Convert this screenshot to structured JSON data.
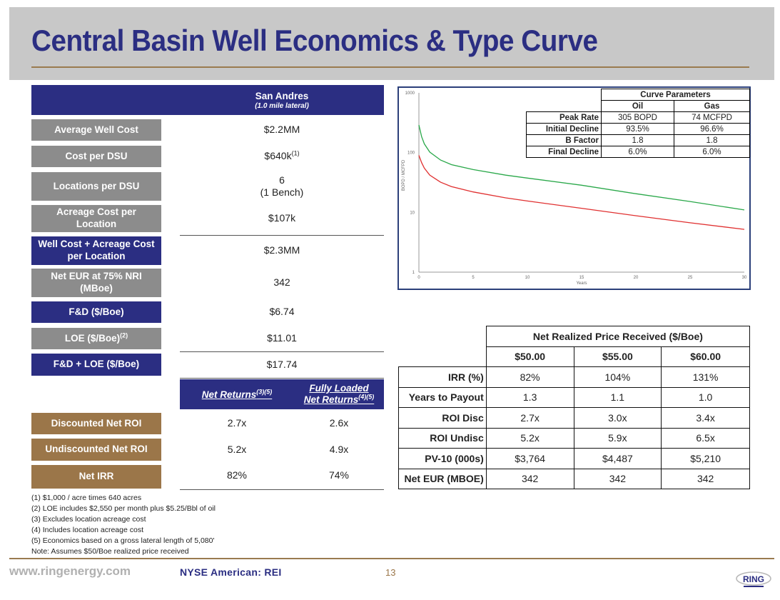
{
  "title": "Central Basin Well Economics & Type Curve",
  "left_table": {
    "header": "San Andres",
    "subheader": "(1.0 mile lateral)",
    "rows": [
      {
        "label": "Average Well Cost",
        "value": "$2.2MM"
      },
      {
        "label": "Cost per DSU",
        "value": "$640k",
        "sup": "(1)"
      },
      {
        "label": "Locations per DSU",
        "value": "6",
        "value2": "(1 Bench)"
      },
      {
        "label": "Acreage Cost per Location",
        "value": "$107k"
      },
      {
        "label": "Well Cost + Acreage Cost per Location",
        "value": "$2.3MM"
      },
      {
        "label": "Net EUR at 75% NRI (MBoe)",
        "value": "342"
      },
      {
        "label": "F&D ($/Boe)",
        "value": "$6.74"
      },
      {
        "label": "LOE ($/Boe)",
        "sup": "(2)",
        "value": "$11.01"
      },
      {
        "label": "F&D + LOE ($/Boe)",
        "value": "$17.74"
      }
    ],
    "returns_header": {
      "col1": "Net Returns",
      "col1_sup": "(3)(5)",
      "col2a": "Fully Loaded",
      "col2b": "Net Returns",
      "col2_sup": "(4)(5)"
    },
    "returns_rows": [
      {
        "label": "Discounted Net ROI",
        "net": "2.7x",
        "loaded": "2.6x"
      },
      {
        "label": "Undiscounted Net ROI",
        "net": "5.2x",
        "loaded": "4.9x"
      },
      {
        "label": "Net IRR",
        "net": "82%",
        "loaded": "74%"
      }
    ]
  },
  "footnotes": [
    "(1) $1,000 / acre times 640 acres",
    "(2) LOE includes $2,550 per month plus $5.25/Bbl of oil",
    "(3) Excludes location acreage cost",
    "(4) Includes location acreage cost",
    "(5) Economics based on a gross lateral length of 5,080'",
    "Note: Assumes $50/Boe realized price received"
  ],
  "curve_parameters": {
    "title": "Curve Parameters",
    "cols": [
      "Oil",
      "Gas"
    ],
    "rows": [
      {
        "label": "Peak Rate",
        "oil": "305 BOPD",
        "gas": "74 MCFPD"
      },
      {
        "label": "Initial Decline",
        "oil": "93.5%",
        "gas": "96.6%"
      },
      {
        "label": "B Factor",
        "oil": "1.8",
        "gas": "1.8"
      },
      {
        "label": "Final Decline",
        "oil": "6.0%",
        "gas": "6.0%"
      }
    ]
  },
  "chart_data": {
    "type": "line",
    "xlabel": "Years",
    "ylabel": "BOPD / MCFPD",
    "log_y": true,
    "ylim": [
      1,
      1000
    ],
    "xlim": [
      0,
      30
    ],
    "x_ticks": [
      "0",
      "5",
      "10",
      "15",
      "20",
      "25",
      "30"
    ],
    "y_ticks": [
      "1",
      "10",
      "100",
      "1000"
    ],
    "series": [
      {
        "color": "#e03030",
        "x": [
          0,
          0.25,
          0.5,
          1,
          2,
          3,
          5,
          8,
          10,
          15,
          20,
          25,
          30
        ],
        "y": [
          90,
          68,
          55,
          42,
          32,
          27,
          22,
          17.5,
          15.5,
          11.7,
          8.8,
          6.7,
          5.2
        ]
      },
      {
        "color": "#2aa84a",
        "x": [
          0,
          0.25,
          0.5,
          1,
          2,
          3,
          5,
          8,
          10,
          15,
          20,
          25,
          30
        ],
        "y": [
          290,
          185,
          140,
          102,
          75,
          63,
          52,
          42,
          37.5,
          28.5,
          20.5,
          15.2,
          11
        ]
      }
    ]
  },
  "price_table": {
    "title": "Net Realized Price Received ($/Boe)",
    "prices": [
      "$50.00",
      "$55.00",
      "$60.00"
    ],
    "rows": [
      {
        "label": "IRR (%)",
        "v": [
          "82%",
          "104%",
          "131%"
        ]
      },
      {
        "label": "Years to Payout",
        "v": [
          "1.3",
          "1.1",
          "1.0"
        ]
      },
      {
        "label": "ROI Disc",
        "v": [
          "2.7x",
          "3.0x",
          "3.4x"
        ]
      },
      {
        "label": "ROI Undisc",
        "v": [
          "5.2x",
          "5.9x",
          "6.5x"
        ]
      },
      {
        "label": "PV-10 (000s)",
        "v": [
          "$3,764",
          "$4,487",
          "$5,210"
        ]
      },
      {
        "label": "Net EUR (MBOE)",
        "v": [
          "342",
          "342",
          "342"
        ]
      }
    ]
  },
  "footer": {
    "website": "www.ringenergy.com",
    "exchange": "NYSE American: REI",
    "page": "13",
    "logo_text": "RING"
  }
}
